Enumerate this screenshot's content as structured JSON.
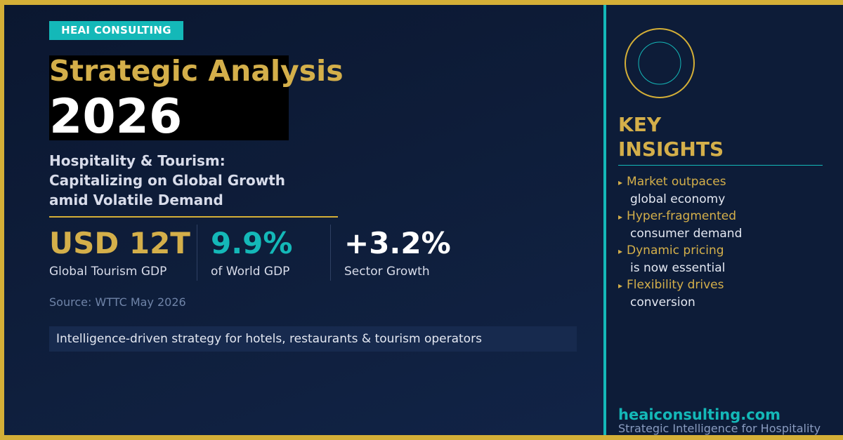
{
  "brand": {
    "tag": "HEAI CONSULTING"
  },
  "title": {
    "line1": "Strategic Analysis",
    "line2": "2026"
  },
  "subtitle": {
    "lines": [
      "Hospitality & Tourism:",
      "Capitalizing on Global Growth",
      "amid Volatile Demand"
    ]
  },
  "stats": [
    {
      "value": "USD 12T",
      "label": "Global Tourism GDP"
    },
    {
      "value": "9.9%",
      "label": "of World GDP"
    },
    {
      "value": "+3.2%",
      "label": "Sector Growth"
    }
  ],
  "source": "Source: WTTC May 2026",
  "tagline": "Intelligence-driven strategy for hotels, restaurants & tourism operators",
  "insights": {
    "title_line1": "KEY",
    "title_line2": "INSIGHTS",
    "bullet": "▸",
    "items": [
      {
        "line1": "Market outpaces",
        "line2": "global economy"
      },
      {
        "line1": "Hyper-fragmented",
        "line2": "consumer demand"
      },
      {
        "line1": "Dynamic pricing",
        "line2": "is now essential"
      },
      {
        "line1": "Flexibility drives",
        "line2": "conversion"
      }
    ]
  },
  "footer": {
    "site": "heaiconsulting.com",
    "tagline": "Strategic Intelligence for Hospitality"
  },
  "colors": {
    "gold": "#d4af37",
    "teal": "#14b8b8",
    "navy": "#0f1f3d"
  }
}
